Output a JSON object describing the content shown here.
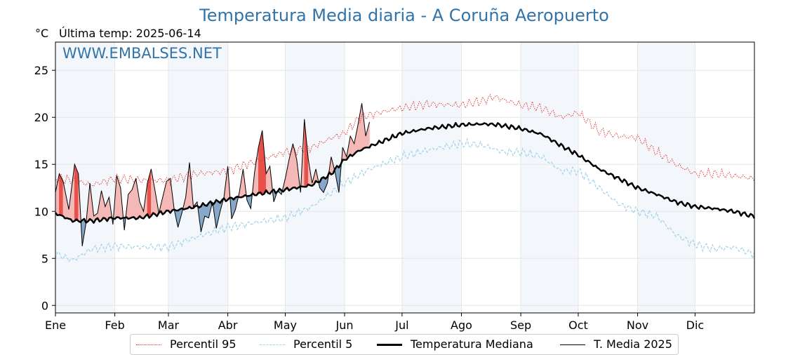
{
  "title": "Temperatura Media diaria - A Coruña Aeropuerto",
  "unit_label": "°C",
  "last_temp_label": "Última temp: 2025-06-14",
  "watermark": "WWW.EMBALSES.NET",
  "legend": [
    {
      "label": "Percentil 95",
      "color": "#e8292c",
      "style": "dotted"
    },
    {
      "label": "Percentil 5",
      "color": "#9fd3e6",
      "style": "dashed"
    },
    {
      "label": "Temperatura Mediana",
      "color": "#000000",
      "style": "thick"
    },
    {
      "label": "T. Media 2025",
      "color": "#000000",
      "style": "thin"
    }
  ],
  "chart_data": {
    "type": "line",
    "title": "Temperatura Media diaria - A Coruña Aeropuerto",
    "ylabel": "°C",
    "ylim": [
      -0.8,
      28
    ],
    "yticks": [
      0,
      5,
      10,
      15,
      20,
      25
    ],
    "xlim": [
      1,
      366
    ],
    "month_labels": [
      "Ene",
      "Feb",
      "Mar",
      "Abr",
      "May",
      "Jun",
      "Jul",
      "Ago",
      "Sep",
      "Oct",
      "Nov",
      "Dic"
    ],
    "month_start_days": [
      1,
      32,
      60,
      91,
      121,
      152,
      182,
      213,
      244,
      274,
      305,
      335
    ],
    "shaded_bands": "alternate months",
    "grid": true,
    "legend_position": "bottom-center",
    "fill_above_color": "#f4b9b6",
    "fill_above_strong_color": "#e8504a",
    "fill_below_color": "#87a8c8",
    "series": [
      {
        "name": "Percentil 95",
        "x": [
          1,
          10,
          20,
          32,
          45,
          60,
          75,
          91,
          105,
          121,
          135,
          145,
          152,
          160,
          170,
          182,
          195,
          213,
          225,
          230,
          244,
          255,
          265,
          274,
          285,
          295,
          305,
          315,
          325,
          335,
          345,
          355,
          365
        ],
        "values": [
          13.5,
          13.3,
          12.8,
          13.5,
          13.3,
          13.3,
          14.0,
          14.3,
          15.3,
          16.3,
          16.8,
          17.8,
          18.3,
          20.0,
          20.5,
          21.0,
          21.4,
          21.3,
          21.8,
          22.2,
          21.3,
          21.0,
          20.0,
          20.5,
          18.5,
          18.0,
          17.8,
          16.3,
          15.0,
          14.0,
          14.0,
          13.8,
          13.5
        ]
      },
      {
        "name": "Percentil 5",
        "x": [
          1,
          10,
          20,
          32,
          45,
          60,
          75,
          91,
          105,
          121,
          135,
          152,
          165,
          182,
          195,
          213,
          225,
          235,
          244,
          255,
          265,
          274,
          285,
          295,
          305,
          315,
          325,
          335,
          345,
          355,
          365
        ],
        "values": [
          5.5,
          4.8,
          6.0,
          6.3,
          6.2,
          6.2,
          7.3,
          8.3,
          8.8,
          9.3,
          10.5,
          13.0,
          14.5,
          15.8,
          16.5,
          17.2,
          17.0,
          16.3,
          16.3,
          15.8,
          14.3,
          14.3,
          12.5,
          10.8,
          10.0,
          9.5,
          7.5,
          6.5,
          6.0,
          6.2,
          5.5
        ]
      },
      {
        "name": "Temperatura Mediana",
        "x": [
          1,
          10,
          20,
          32,
          45,
          60,
          75,
          91,
          105,
          121,
          135,
          145,
          152,
          160,
          170,
          182,
          195,
          213,
          225,
          232,
          244,
          255,
          265,
          274,
          285,
          295,
          305,
          315,
          325,
          335,
          345,
          355,
          365
        ],
        "values": [
          9.8,
          9.0,
          9.0,
          9.3,
          9.3,
          10.0,
          10.5,
          11.3,
          11.8,
          12.3,
          12.8,
          14.0,
          15.5,
          16.5,
          17.3,
          18.3,
          18.8,
          19.2,
          19.3,
          19.2,
          18.8,
          18.2,
          17.0,
          16.0,
          14.5,
          13.5,
          12.5,
          11.8,
          11.0,
          10.5,
          10.3,
          10.0,
          9.5
        ]
      },
      {
        "name": "T. Media 2025",
        "x": [
          1,
          3,
          5,
          8,
          11,
          13,
          15,
          17,
          19,
          21,
          23,
          25,
          27,
          29,
          31,
          33,
          35,
          37,
          39,
          41,
          43,
          45,
          47,
          49,
          51,
          53,
          55,
          57,
          59,
          61,
          63,
          65,
          67,
          69,
          71,
          73,
          75,
          77,
          79,
          81,
          83,
          85,
          87,
          89,
          91,
          93,
          95,
          97,
          99,
          101,
          103,
          105,
          107,
          109,
          111,
          113,
          115,
          117,
          119,
          121,
          123,
          125,
          127,
          129,
          131,
          133,
          135,
          137,
          139,
          141,
          143,
          145,
          147,
          149,
          151,
          153,
          155,
          157,
          159,
          161,
          163,
          165
        ],
        "values": [
          12.0,
          14.0,
          13.2,
          10.2,
          15.0,
          14.0,
          6.3,
          8.8,
          13.0,
          9.5,
          9.8,
          12.2,
          10.5,
          11.5,
          8.6,
          13.8,
          12.5,
          8.0,
          11.8,
          12.3,
          13.5,
          11.0,
          10.0,
          13.0,
          14.5,
          12.2,
          9.8,
          11.5,
          13.2,
          13.5,
          10.2,
          8.3,
          9.8,
          11.5,
          15.2,
          10.5,
          11.0,
          7.8,
          9.5,
          9.3,
          11.0,
          8.2,
          10.0,
          11.5,
          14.8,
          9.2,
          10.2,
          12.0,
          14.5,
          11.2,
          10.3,
          14.2,
          16.8,
          18.6,
          14.0,
          14.8,
          11.0,
          12.2,
          11.8,
          13.5,
          15.5,
          17.2,
          15.5,
          12.0,
          19.8,
          15.6,
          13.0,
          14.5,
          12.5,
          12.0,
          13.0,
          15.8,
          14.2,
          12.0,
          16.8,
          15.8,
          18.0,
          17.2,
          19.2,
          21.5,
          18.0,
          19.5
        ]
      }
    ]
  }
}
